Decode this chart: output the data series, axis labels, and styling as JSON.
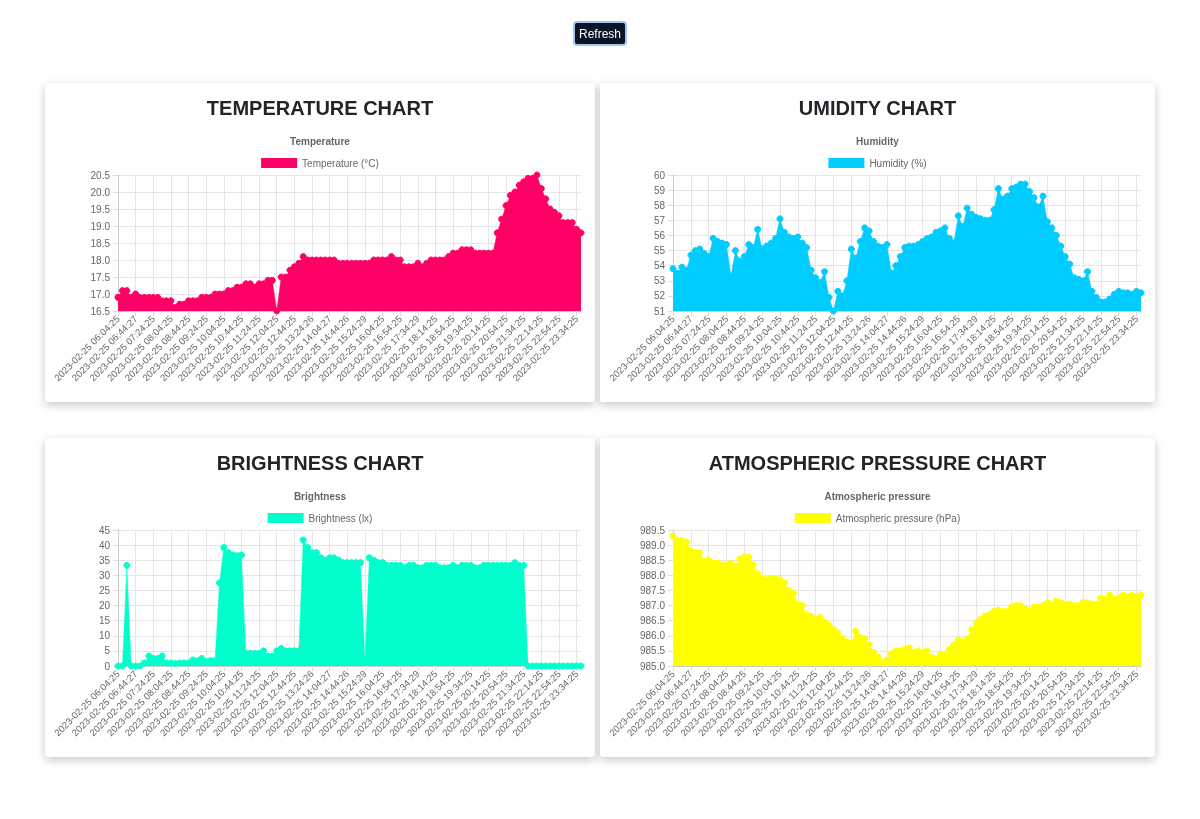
{
  "chart_data": [
    {
      "type": "area",
      "title": "TEMPERATURE CHART",
      "subtitle": "Temperature",
      "annotations": [
        "Refresh"
      ],
      "categories": [
        "2023-02-25 06:04:25",
        null,
        null,
        null,
        "2023-02-25 06:44:27",
        null,
        null,
        null,
        "2023-02-25 07:24:25",
        null,
        null,
        null,
        "2023-02-25 08:04:25",
        null,
        null,
        null,
        "2023-02-25 08:44:25",
        null,
        null,
        null,
        "2023-02-25 09:24:25",
        null,
        null,
        null,
        "2023-02-25 10:04:25",
        null,
        null,
        null,
        "2023-02-25 10:44:25",
        null,
        null,
        null,
        "2023-02-25 11:24:25",
        null,
        null,
        null,
        "2023-02-25 12:04:25",
        null,
        null,
        null,
        "2023-02-25 12:44:25",
        null,
        null,
        null,
        "2023-02-25 13:24:26",
        null,
        null,
        null,
        "2023-02-25 14:04:27",
        null,
        null,
        null,
        "2023-02-25 14:44:26",
        null,
        null,
        null,
        "2023-02-25 15:24:29",
        null,
        null,
        null,
        "2023-02-25 16:04:25",
        null,
        null,
        null,
        "2023-02-25 16:54:25",
        null,
        null,
        null,
        "2023-02-25 17:34:29",
        null,
        null,
        null,
        "2023-02-25 18:14:25",
        null,
        null,
        null,
        "2023-02-25 18:54:25",
        null,
        null,
        null,
        "2023-02-25 19:34:25",
        null,
        null,
        null,
        "2023-02-25 20:14:25",
        null,
        null,
        null,
        "2023-02-25 20:54:25",
        null,
        null,
        null,
        "2023-02-25 21:34:25",
        null,
        null,
        null,
        "2023-02-25 22:14:25",
        null,
        null,
        null,
        "2023-02-25 22:54:25",
        null,
        null,
        null,
        "2023-02-25 23:34:25",
        null
      ],
      "series": [
        {
          "name": "Temperature (°C)",
          "color": "#ff0066",
          "values": [
            16.9,
            17.1,
            17.1,
            16.9,
            17.0,
            16.9,
            16.9,
            16.9,
            16.9,
            16.9,
            16.8,
            16.8,
            16.8,
            16.6,
            16.7,
            16.7,
            16.8,
            16.8,
            16.8,
            16.9,
            16.9,
            16.9,
            17.0,
            17.0,
            17.0,
            17.1,
            17.1,
            17.2,
            17.2,
            17.3,
            17.3,
            17.2,
            17.3,
            17.3,
            17.4,
            17.4,
            16.5,
            17.5,
            17.5,
            17.7,
            17.8,
            17.9,
            18.1,
            18.0,
            18.0,
            18.0,
            18.0,
            18.0,
            18.0,
            18.0,
            17.9,
            17.9,
            17.9,
            17.9,
            17.9,
            17.9,
            17.9,
            17.9,
            18.0,
            18.0,
            18.0,
            18.0,
            18.1,
            18.0,
            18.0,
            17.8,
            17.8,
            17.8,
            17.9,
            17.8,
            17.9,
            18.0,
            18.0,
            18.0,
            18.0,
            18.1,
            18.2,
            18.2,
            18.3,
            18.3,
            18.3,
            18.2,
            18.2,
            18.2,
            18.2,
            18.2,
            18.8,
            19.2,
            19.6,
            19.9,
            20.0,
            20.2,
            20.3,
            20.4,
            20.4,
            20.5,
            20.1,
            19.8,
            19.5,
            19.4,
            19.3,
            19.1,
            19.1,
            19.1,
            18.9,
            18.8
          ]
        }
      ],
      "ylim": [
        16.5,
        20.5
      ],
      "yticks": [
        16.5,
        {
          "value": 17,
          "label": "17.0"
        },
        17.5,
        {
          "value": 18,
          "label": "18.0"
        },
        18.5,
        {
          "value": 19,
          "label": "19.0"
        },
        19.5,
        {
          "value": 20,
          "label": "20.0"
        },
        20.5
      ],
      "grid": true,
      "legend": "top",
      "marker": "circle"
    },
    {
      "type": "area",
      "title": "UMIDITY CHART",
      "subtitle": "Humidity",
      "categories": [
        "2023-02-25 06:04:25",
        null,
        null,
        null,
        "2023-02-25 06:44:27",
        null,
        null,
        null,
        "2023-02-25 07:24:25",
        null,
        null,
        null,
        "2023-02-25 08:04:25",
        null,
        null,
        null,
        "2023-02-25 08:44:25",
        null,
        null,
        null,
        "2023-02-25 09:24:25",
        null,
        null,
        null,
        "2023-02-25 10:04:25",
        null,
        null,
        null,
        "2023-02-25 10:44:25",
        null,
        null,
        null,
        "2023-02-25 11:24:25",
        null,
        null,
        null,
        "2023-02-25 12:04:25",
        null,
        null,
        null,
        "2023-02-25 12:44:25",
        null,
        null,
        null,
        "2023-02-25 13:24:26",
        null,
        null,
        null,
        "2023-02-25 14:04:27",
        null,
        null,
        null,
        "2023-02-25 14:44:26",
        null,
        null,
        null,
        "2023-02-25 15:24:29",
        null,
        null,
        null,
        "2023-02-25 16:04:25",
        null,
        null,
        null,
        "2023-02-25 16:54:25",
        null,
        null,
        null,
        "2023-02-25 17:34:29",
        null,
        null,
        null,
        "2023-02-25 18:14:25",
        null,
        null,
        null,
        "2023-02-25 18:54:25",
        null,
        null,
        null,
        "2023-02-25 19:34:25",
        null,
        null,
        null,
        "2023-02-25 20:14:25",
        null,
        null,
        null,
        "2023-02-25 20:54:25",
        null,
        null,
        null,
        "2023-02-25 21:34:25",
        null,
        null,
        null,
        "2023-02-25 22:14:25",
        null,
        null,
        null,
        "2023-02-25 22:54:25",
        null,
        null,
        null,
        "2023-02-25 23:34:25",
        null
      ],
      "series": [
        {
          "name": "Humidity (%)",
          "color": "#00ccff",
          "values": [
            53.8,
            53.5,
            53.9,
            53.7,
            54.7,
            55.0,
            55.1,
            54.8,
            54.6,
            55.8,
            55.6,
            55.5,
            55.4,
            53.3,
            55.0,
            54.3,
            54.6,
            55.4,
            55.2,
            56.4,
            55.1,
            55.3,
            55.5,
            55.8,
            57.1,
            56.2,
            55.9,
            55.8,
            55.9,
            55.5,
            55.2,
            53.7,
            53.2,
            52.9,
            53.6,
            51.9,
            51.0,
            52.3,
            52.0,
            53.0,
            55.1,
            54.5,
            55.6,
            56.5,
            56.3,
            55.6,
            55.3,
            55.2,
            55.4,
            53.5,
            54.0,
            54.6,
            55.2,
            55.3,
            55.3,
            55.4,
            55.6,
            55.8,
            55.9,
            56.2,
            56.3,
            56.5,
            55.8,
            55.5,
            57.3,
            56.6,
            57.8,
            57.4,
            57.2,
            57.1,
            57.0,
            57.0,
            57.7,
            59.1,
            58.4,
            58.6,
            59.1,
            59.2,
            59.4,
            59.4,
            58.9,
            58.5,
            57.9,
            58.6,
            56.9,
            56.5,
            56.0,
            55.3,
            54.6,
            54.1,
            53.2,
            53.1,
            53.0,
            53.6,
            52.3,
            51.9,
            51.6,
            51.6,
            51.8,
            52.1,
            52.3,
            52.2,
            52.2,
            52.1,
            52.3,
            52.2
          ]
        }
      ],
      "ylim": [
        51,
        60
      ],
      "yticks": [
        51,
        52,
        53,
        54,
        55,
        56,
        57,
        58,
        59,
        60
      ],
      "grid": true,
      "legend": "top",
      "marker": "circle"
    },
    {
      "type": "area",
      "title": "BRIGHTNESS CHART",
      "subtitle": "Brightness",
      "categories": [
        "2023-02-25 06:04:25",
        null,
        null,
        null,
        "2023-02-25 06:44:27",
        null,
        null,
        null,
        "2023-02-25 07:24:25",
        null,
        null,
        null,
        "2023-02-25 08:04:25",
        null,
        null,
        null,
        "2023-02-25 08:44:25",
        null,
        null,
        null,
        "2023-02-25 09:24:25",
        null,
        null,
        null,
        "2023-02-25 10:04:25",
        null,
        null,
        null,
        "2023-02-25 10:44:25",
        null,
        null,
        null,
        "2023-02-25 11:24:25",
        null,
        null,
        null,
        "2023-02-25 12:04:25",
        null,
        null,
        null,
        "2023-02-25 12:44:25",
        null,
        null,
        null,
        "2023-02-25 13:24:26",
        null,
        null,
        null,
        "2023-02-25 14:04:27",
        null,
        null,
        null,
        "2023-02-25 14:44:26",
        null,
        null,
        null,
        "2023-02-25 15:24:29",
        null,
        null,
        null,
        "2023-02-25 16:04:25",
        null,
        null,
        null,
        "2023-02-25 16:54:25",
        null,
        null,
        null,
        "2023-02-25 17:34:29",
        null,
        null,
        null,
        "2023-02-25 18:14:25",
        null,
        null,
        null,
        "2023-02-25 18:54:25",
        null,
        null,
        null,
        "2023-02-25 19:34:25",
        null,
        null,
        null,
        "2023-02-25 20:14:25",
        null,
        null,
        null,
        "2023-02-25 20:54:25",
        null,
        null,
        null,
        "2023-02-25 21:34:25",
        null,
        null,
        null,
        "2023-02-25 22:14:25",
        null,
        null,
        null,
        "2023-02-25 22:54:25",
        null,
        null,
        null,
        "2023-02-25 23:34:25",
        null
      ],
      "series": [
        {
          "name": "Brightness (lx)",
          "color": "#00ffcc",
          "values": [
            0,
            0,
            33.3,
            0,
            0,
            0,
            1,
            3.3,
            2.5,
            2.5,
            3.3,
            1,
            1,
            0.8,
            1,
            1,
            1,
            2,
            1.7,
            2.5,
            1.5,
            1.8,
            1.7,
            27.5,
            39.2,
            37.5,
            36.7,
            36.5,
            36.7,
            4.2,
            4.2,
            4.2,
            4.2,
            5,
            3.3,
            3.3,
            5,
            5.8,
            5,
            5,
            5,
            5,
            41.7,
            39.2,
            37.5,
            37.5,
            35.8,
            35,
            35.8,
            35.8,
            35,
            34.2,
            34.2,
            34.2,
            34.2,
            34.2,
            1.7,
            35.8,
            35,
            34.2,
            34.2,
            33.3,
            33.3,
            33.3,
            33.3,
            32.5,
            33.3,
            33.3,
            32.5,
            32.5,
            33.3,
            33.3,
            33.3,
            32.5,
            32.5,
            32.5,
            33.3,
            32.5,
            33.3,
            33.3,
            33.3,
            32.5,
            32.5,
            33.3,
            33.3,
            33.3,
            33.3,
            33.3,
            33.3,
            33.3,
            34.2,
            33.3,
            33.3,
            0,
            0,
            0,
            0,
            0,
            0,
            0,
            0,
            0,
            0,
            0,
            0,
            0
          ]
        }
      ],
      "ylim": [
        0,
        45
      ],
      "yticks": [
        0,
        5,
        10,
        15,
        20,
        25,
        30,
        35,
        40,
        45
      ],
      "grid": true,
      "legend": "top",
      "marker": "circle"
    },
    {
      "type": "area",
      "title": "ATMOSPHERIC PRESSURE CHART",
      "subtitle": "Atmospheric pressure",
      "categories": [
        "2023-02-25 06:04:25",
        null,
        null,
        null,
        "2023-02-25 06:44:27",
        null,
        null,
        null,
        "2023-02-25 07:24:25",
        null,
        null,
        null,
        "2023-02-25 08:04:25",
        null,
        null,
        null,
        "2023-02-25 08:44:25",
        null,
        null,
        null,
        "2023-02-25 09:24:25",
        null,
        null,
        null,
        "2023-02-25 10:04:25",
        null,
        null,
        null,
        "2023-02-25 10:44:25",
        null,
        null,
        null,
        "2023-02-25 11:24:25",
        null,
        null,
        null,
        "2023-02-25 12:04:25",
        null,
        null,
        null,
        "2023-02-25 12:44:25",
        null,
        null,
        null,
        "2023-02-25 13:24:26",
        null,
        null,
        null,
        "2023-02-25 14:04:27",
        null,
        null,
        null,
        "2023-02-25 14:44:26",
        null,
        null,
        null,
        "2023-02-25 15:24:29",
        null,
        null,
        null,
        "2023-02-25 16:04:25",
        null,
        null,
        null,
        "2023-02-25 16:54:25",
        null,
        null,
        null,
        "2023-02-25 17:34:29",
        null,
        null,
        null,
        "2023-02-25 18:14:25",
        null,
        null,
        null,
        "2023-02-25 18:54:25",
        null,
        null,
        null,
        "2023-02-25 19:34:25",
        null,
        null,
        null,
        "2023-02-25 20:14:25",
        null,
        null,
        null,
        "2023-02-25 20:54:25",
        null,
        null,
        null,
        "2023-02-25 21:34:25",
        null,
        null,
        null,
        "2023-02-25 22:14:25",
        null,
        null,
        null,
        "2023-02-25 22:54:25",
        null,
        null,
        null,
        "2023-02-25 23:34:25",
        null
      ],
      "series": [
        {
          "name": "Atmospheric pressure (hPa)",
          "color": "#ffff00",
          "values": [
            989.3,
            989.15,
            989.15,
            989.1,
            988.8,
            988.75,
            988.75,
            988.45,
            988.5,
            988.4,
            988.4,
            988.35,
            988.35,
            988.4,
            988.3,
            988.55,
            988.6,
            988.6,
            988.35,
            988.05,
            987.9,
            987.85,
            987.9,
            987.9,
            987.85,
            987.75,
            987.5,
            987.4,
            987.05,
            987.0,
            986.7,
            986.65,
            986.55,
            986.6,
            986.45,
            986.35,
            986.2,
            986.1,
            985.9,
            985.8,
            985.75,
            986.15,
            985.95,
            985.9,
            985.7,
            985.45,
            985.3,
            985.1,
            985.2,
            985.4,
            985.5,
            985.5,
            985.55,
            985.6,
            985.45,
            985.5,
            985.45,
            985.5,
            985.3,
            985.25,
            985.4,
            985.35,
            985.55,
            985.7,
            985.85,
            985.8,
            985.9,
            986.2,
            986.4,
            986.55,
            986.65,
            986.7,
            986.8,
            986.85,
            986.8,
            986.8,
            986.95,
            987.0,
            987.0,
            986.9,
            986.8,
            986.95,
            986.95,
            987.0,
            987.1,
            987.05,
            987.15,
            987.1,
            987.05,
            987.05,
            987.0,
            987.0,
            987.1,
            987.1,
            987.05,
            987.05,
            987.25,
            987.2,
            987.35,
            987.2,
            987.25,
            987.35,
            987.3,
            987.35,
            987.3,
            987.35
          ]
        }
      ],
      "ylim": [
        985,
        989.5
      ],
      "yticks": [
        {
          "value": 985,
          "label": "985.0"
        },
        985.5,
        {
          "value": 986,
          "label": "986.0"
        },
        986.5,
        {
          "value": 987,
          "label": "987.0"
        },
        987.5,
        {
          "value": 988,
          "label": "988.0"
        },
        988.5,
        {
          "value": 989,
          "label": "989.0"
        },
        989.5
      ],
      "grid": true,
      "legend": "top",
      "marker": "circle"
    }
  ]
}
